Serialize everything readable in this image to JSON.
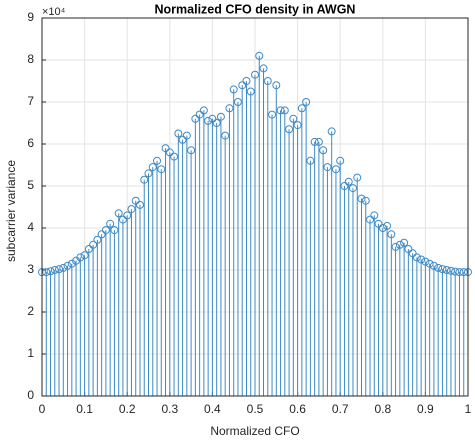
{
  "chart_data": {
    "type": "stem",
    "title": "Normalized CFO density in AWGN",
    "xlabel": "Normalized CFO",
    "ylabel": "subcarrier variance",
    "y_scale_label": "×10⁴",
    "color": "#3d8ac6",
    "grid": true,
    "xlim": [
      0,
      1
    ],
    "ylim": [
      0,
      9
    ],
    "xticks": [
      0,
      0.1,
      0.2,
      0.3,
      0.4,
      0.5,
      0.6,
      0.7,
      0.8,
      0.9,
      1
    ],
    "yticks": [
      0,
      1,
      2,
      3,
      4,
      5,
      6,
      7,
      8,
      9
    ],
    "x": [
      0,
      0.01,
      0.02,
      0.03,
      0.04,
      0.05,
      0.06,
      0.07,
      0.08,
      0.09,
      0.1,
      0.11,
      0.12,
      0.13,
      0.14,
      0.15,
      0.16,
      0.17,
      0.18,
      0.19,
      0.2,
      0.21,
      0.22,
      0.23,
      0.24,
      0.25,
      0.26,
      0.27,
      0.28,
      0.29,
      0.3,
      0.31,
      0.32,
      0.33,
      0.34,
      0.35,
      0.36,
      0.37,
      0.38,
      0.39,
      0.4,
      0.41,
      0.42,
      0.43,
      0.44,
      0.45,
      0.46,
      0.47,
      0.48,
      0.49,
      0.5,
      0.51,
      0.52,
      0.53,
      0.54,
      0.55,
      0.56,
      0.57,
      0.58,
      0.59,
      0.6,
      0.61,
      0.62,
      0.63,
      0.64,
      0.65,
      0.66,
      0.67,
      0.68,
      0.69,
      0.7,
      0.71,
      0.72,
      0.73,
      0.74,
      0.75,
      0.76,
      0.77,
      0.78,
      0.79,
      0.8,
      0.81,
      0.82,
      0.83,
      0.84,
      0.85,
      0.86,
      0.87,
      0.88,
      0.89,
      0.9,
      0.91,
      0.92,
      0.93,
      0.94,
      0.95,
      0.96,
      0.97,
      0.98,
      0.99,
      1
    ],
    "values": [
      2.95,
      2.95,
      2.97,
      3.0,
      3.02,
      3.05,
      3.1,
      3.15,
      3.22,
      3.3,
      3.35,
      3.5,
      3.6,
      3.72,
      3.85,
      3.95,
      4.1,
      3.95,
      4.35,
      4.2,
      4.3,
      4.45,
      4.65,
      4.55,
      5.15,
      5.3,
      5.45,
      5.6,
      5.4,
      5.9,
      5.8,
      5.7,
      6.25,
      6.1,
      6.2,
      5.85,
      6.6,
      6.7,
      6.8,
      6.55,
      6.6,
      6.5,
      6.65,
      6.2,
      6.85,
      7.3,
      7.0,
      7.4,
      7.5,
      7.25,
      7.65,
      8.1,
      7.8,
      7.5,
      6.7,
      7.4,
      6.8,
      6.8,
      6.35,
      6.6,
      6.45,
      6.85,
      7.0,
      5.6,
      6.05,
      6.05,
      5.85,
      5.45,
      6.3,
      5.4,
      5.6,
      5.0,
      5.1,
      4.95,
      5.2,
      4.7,
      4.65,
      4.2,
      4.3,
      4.1,
      4.0,
      4.05,
      3.85,
      3.55,
      3.6,
      3.65,
      3.5,
      3.4,
      3.3,
      3.25,
      3.2,
      3.15,
      3.1,
      3.05,
      3.02,
      3.0,
      2.98,
      2.96,
      2.95,
      2.95,
      2.95
    ]
  }
}
